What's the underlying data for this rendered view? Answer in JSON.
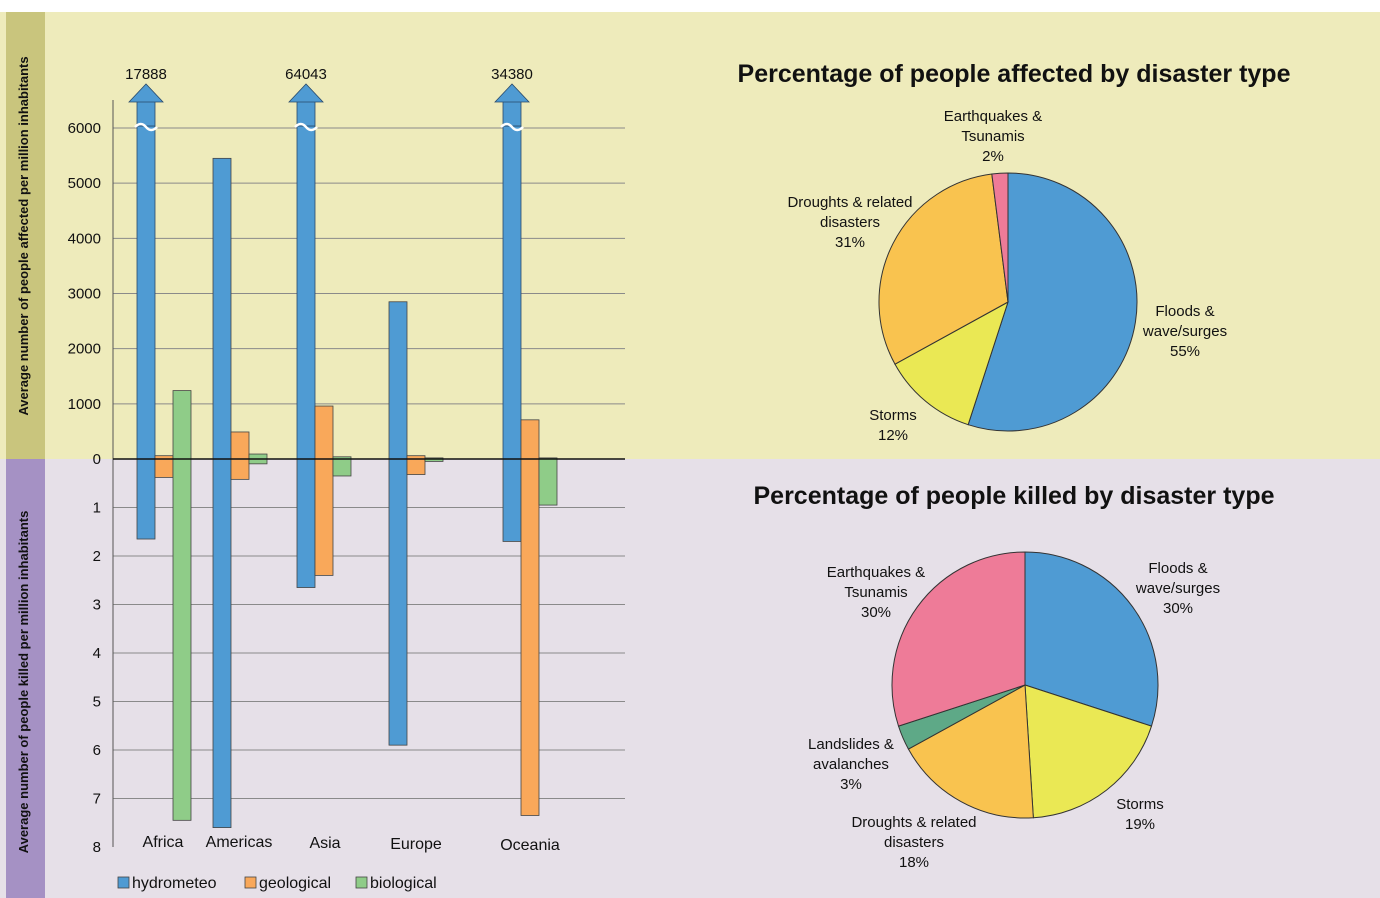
{
  "colors": {
    "top_band": "#eeebbb",
    "bottom_band": "#e6e0e8",
    "top_label_band": "#c9c57d",
    "bottom_label_band": "#a591c4",
    "hydrometeo": "#4f9bd3",
    "geological": "#f9a85a",
    "biological": "#8fcc88",
    "floods": "#4f9bd3",
    "droughts": "#f9c34f",
    "storms": "#eae854",
    "earthquakes": "#ee7b98",
    "landslides": "#5ea987"
  },
  "chart_data": [
    {
      "type": "bar",
      "ylabel_top": "Average number of people affected per million inhabitants",
      "ylabel_bottom": "Average number of people killed per million inhabitants",
      "categories": [
        "Africa",
        "Americas",
        "Asia",
        "Europe",
        "Oceania"
      ],
      "affected_ticks": [
        "6000",
        "5000",
        "4000",
        "3000",
        "2000",
        "1000",
        "0"
      ],
      "killed_ticks": [
        "1",
        "2",
        "3",
        "4",
        "5",
        "6",
        "7",
        "8"
      ],
      "affected_ylim": [
        0,
        6000
      ],
      "killed_ylim": [
        0,
        8
      ],
      "overflow_labels": [
        "17888",
        "64043",
        "34380"
      ],
      "series": [
        {
          "name": "hydrometeo",
          "affected": [
            17888,
            5450,
            64043,
            2850,
            34380
          ],
          "killed": [
            1.65,
            7.6,
            2.65,
            5.9,
            1.7
          ]
        },
        {
          "name": "geological",
          "affected": [
            60,
            490,
            960,
            60,
            710
          ],
          "killed": [
            0.38,
            0.42,
            2.4,
            0.32,
            7.35
          ]
        },
        {
          "name": "biological",
          "affected": [
            1240,
            90,
            40,
            20,
            20
          ],
          "killed": [
            7.45,
            0.1,
            0.35,
            0.05,
            0.95
          ]
        }
      ],
      "legend": [
        "hydrometeo",
        "geological",
        "biological"
      ]
    },
    {
      "type": "pie",
      "title": "Percentage of people affected by disaster type",
      "slices": [
        {
          "label": [
            "Floods &",
            "wave/surges",
            "55%"
          ],
          "value": 55,
          "color_key": "floods"
        },
        {
          "label": [
            "Storms",
            "12%"
          ],
          "value": 12,
          "color_key": "storms"
        },
        {
          "label": [
            "Droughts & related",
            "disasters",
            "31%"
          ],
          "value": 31,
          "color_key": "droughts"
        },
        {
          "label": [
            "Earthquakes &",
            "Tsunamis",
            "2%"
          ],
          "value": 2,
          "color_key": "earthquakes"
        }
      ]
    },
    {
      "type": "pie",
      "title": "Percentage of people killed by disaster type",
      "slices": [
        {
          "label": [
            "Floods &",
            "wave/surges",
            "30%"
          ],
          "value": 30,
          "color_key": "floods"
        },
        {
          "label": [
            "Storms",
            "19%"
          ],
          "value": 19,
          "color_key": "storms"
        },
        {
          "label": [
            "Droughts & related",
            "disasters",
            "18%"
          ],
          "value": 18,
          "color_key": "droughts"
        },
        {
          "label": [
            "Landslides &",
            "avalanches",
            "3%"
          ],
          "value": 3,
          "color_key": "landslides"
        },
        {
          "label": [
            "Earthquakes &",
            "Tsunamis",
            "30%"
          ],
          "value": 30,
          "color_key": "earthquakes"
        }
      ]
    }
  ]
}
